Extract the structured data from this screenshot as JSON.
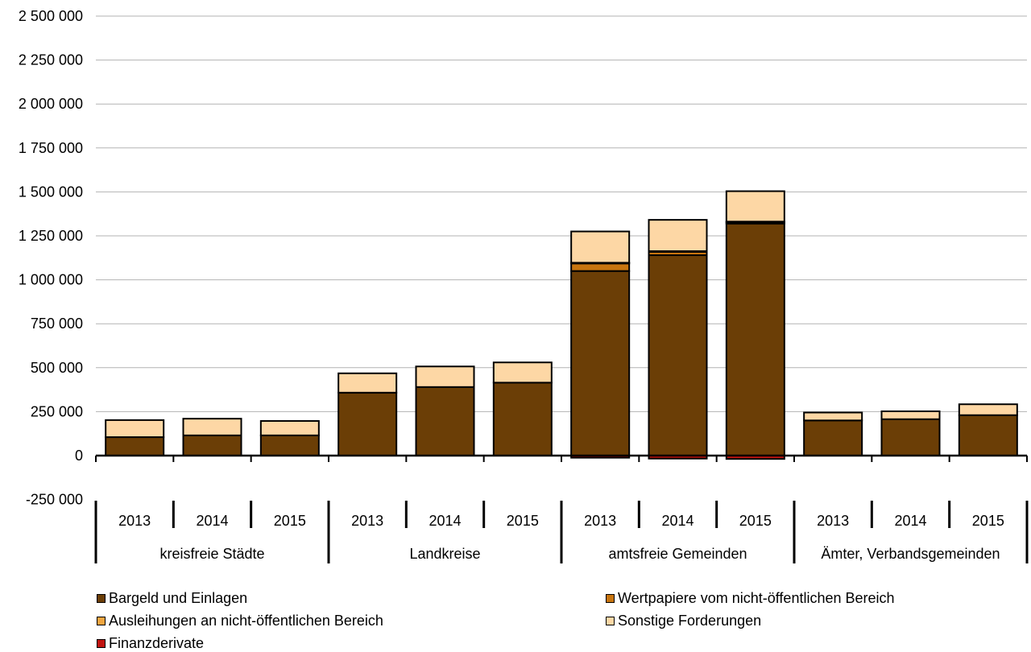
{
  "chart_data": {
    "type": "bar",
    "stacked": true,
    "ylim": [
      -250000,
      2500000
    ],
    "yticks": [
      {
        "value": 2500000,
        "label": "2 500 000"
      },
      {
        "value": 2250000,
        "label": "2 250 000"
      },
      {
        "value": 2000000,
        "label": "2 000 000"
      },
      {
        "value": 1750000,
        "label": "1 750 000"
      },
      {
        "value": 1500000,
        "label": "1 500 000"
      },
      {
        "value": 1250000,
        "label": "1 250 000"
      },
      {
        "value": 1000000,
        "label": "1 000 000"
      },
      {
        "value": 750000,
        "label": "750 000"
      },
      {
        "value": 500000,
        "label": "500 000"
      },
      {
        "value": 250000,
        "label": "250 000"
      },
      {
        "value": 0,
        "label": "0"
      },
      {
        "value": -250000,
        "label": "-250 000"
      }
    ],
    "grid": true,
    "legend_position": "bottom",
    "categories": [
      "2013",
      "2014",
      "2015",
      "2013",
      "2014",
      "2015",
      "2013",
      "2014",
      "2015",
      "2013",
      "2014",
      "2015"
    ],
    "groups": [
      "kreisfreie Städte",
      "Landkreise",
      "amtsfreie Gemeinden",
      "Ämter, Verbandsgemeinden"
    ],
    "series": [
      {
        "name": "Bargeld und Einlagen",
        "color": "#6b3e06",
        "values": [
          105000,
          115000,
          115000,
          358000,
          390000,
          415000,
          1050000,
          1140000,
          1320000,
          200000,
          207000,
          230000
        ]
      },
      {
        "name": "Wertpapiere vom nicht-öffentlichen Bereich",
        "color": "#c8750f",
        "values": [
          0,
          0,
          0,
          0,
          0,
          0,
          45000,
          20000,
          8000,
          0,
          0,
          0
        ]
      },
      {
        "name": "Ausleihungen an nicht-öffentlichen Bereich",
        "color": "#f0a540",
        "values": [
          0,
          0,
          0,
          0,
          0,
          0,
          2000,
          3000,
          3000,
          0,
          0,
          0
        ]
      },
      {
        "name": "Sonstige Forderungen",
        "color": "#fdd7a5",
        "values": [
          97000,
          95000,
          82000,
          110000,
          117000,
          115000,
          178000,
          178000,
          173000,
          45000,
          45000,
          62000
        ]
      },
      {
        "name": "Finanzderivate",
        "color": "#c0130f",
        "values": [
          0,
          0,
          0,
          0,
          0,
          0,
          -12000,
          -17000,
          -19000,
          0,
          0,
          0
        ]
      }
    ]
  },
  "legend": {
    "items": [
      {
        "label": "Bargeld und Einlagen",
        "color": "#6b3e06"
      },
      {
        "label": "Wertpapiere vom nicht-öffentlichen Bereich",
        "color": "#c8750f"
      },
      {
        "label": "Ausleihungen an nicht-öffentlichen Bereich",
        "color": "#f0a540"
      },
      {
        "label": "Sonstige Forderungen",
        "color": "#fdd7a5"
      },
      {
        "label": "Finanzderivate",
        "color": "#c0130f"
      }
    ]
  }
}
